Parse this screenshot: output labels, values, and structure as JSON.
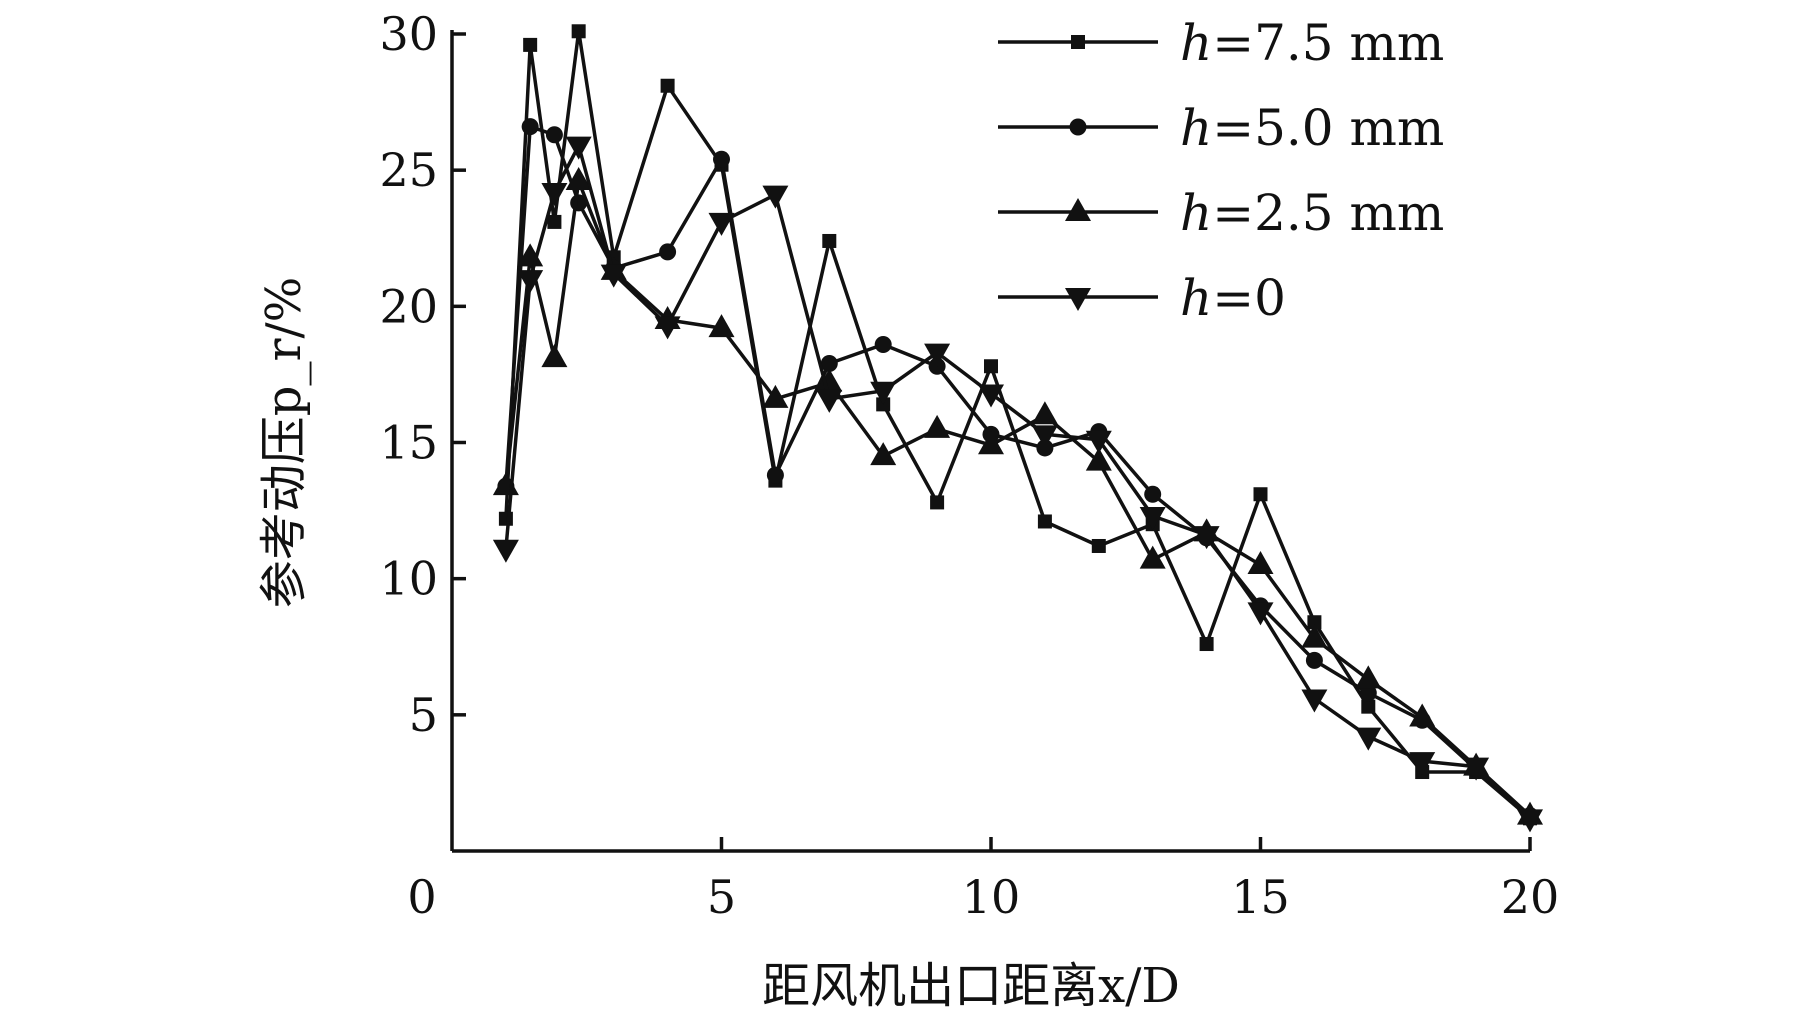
{
  "chart_data": {
    "type": "line",
    "xlabel": "距风机出口距离x/D",
    "ylabel": "参考动压p_r/%",
    "xlim": [
      0,
      20
    ],
    "ylim": [
      0,
      30
    ],
    "x_ticks": [
      "0",
      "5",
      "10",
      "15",
      "20"
    ],
    "y_ticks": [
      "5",
      "10",
      "15",
      "20",
      "25",
      "30"
    ],
    "grid": false,
    "legend_position": "top-right",
    "line_color": "#111111",
    "series": [
      {
        "name": "h=7.5 mm",
        "marker": "square",
        "x": [
          1,
          1.45,
          1.9,
          2.35,
          3,
          4,
          5,
          6,
          7,
          8,
          9,
          10,
          11,
          12,
          13,
          14,
          15,
          16,
          17,
          18,
          19,
          20
        ],
        "y": [
          12.2,
          29.6,
          23.1,
          30.1,
          21.8,
          28.1,
          25.2,
          13.6,
          22.4,
          16.4,
          12.8,
          17.8,
          12.1,
          11.2,
          12,
          7.6,
          13.1,
          8.4,
          5.3,
          2.9,
          2.9,
          1.2
        ]
      },
      {
        "name": "h=5.0 mm",
        "marker": "circle",
        "x": [
          1,
          1.45,
          1.9,
          2.35,
          3,
          4,
          5,
          6,
          7,
          8,
          9,
          10,
          11,
          12,
          13,
          14,
          15,
          16,
          17,
          18,
          19,
          20
        ],
        "y": [
          13.4,
          26.6,
          26.3,
          23.8,
          21.4,
          22,
          25.4,
          13.8,
          17.9,
          18.6,
          17.8,
          15.3,
          14.8,
          15.4,
          13.1,
          11.5,
          9,
          7,
          5.8,
          4.8,
          3,
          1.3
        ]
      },
      {
        "name": "h=2.5 mm",
        "marker": "triangle-up",
        "x": [
          1,
          1.45,
          1.9,
          2.35,
          3,
          4,
          5,
          6,
          7,
          8,
          9,
          10,
          11,
          12,
          13,
          14,
          15,
          16,
          17,
          18,
          19,
          20
        ],
        "y": [
          13.4,
          21.8,
          18.1,
          24.6,
          21.3,
          19.5,
          19.2,
          16.6,
          17.2,
          14.5,
          15.5,
          14.9,
          16,
          14.3,
          10.7,
          11.7,
          10.5,
          7.8,
          6.3,
          4.9,
          3.1,
          1.3
        ]
      },
      {
        "name": "h=0",
        "marker": "triangle-down",
        "x": [
          1,
          1.45,
          1.9,
          2.35,
          3,
          4,
          5,
          6,
          7,
          8,
          9,
          10,
          11,
          12,
          13,
          14,
          15,
          16,
          17,
          18,
          19,
          20
        ],
        "y": [
          11.1,
          21,
          24.2,
          25.9,
          21.2,
          19.3,
          23.1,
          24.1,
          16.6,
          16.9,
          18.3,
          16.8,
          15.3,
          15.1,
          12.3,
          11.6,
          8.8,
          5.6,
          4.2,
          3.3,
          3.1,
          1.2
        ]
      }
    ]
  }
}
